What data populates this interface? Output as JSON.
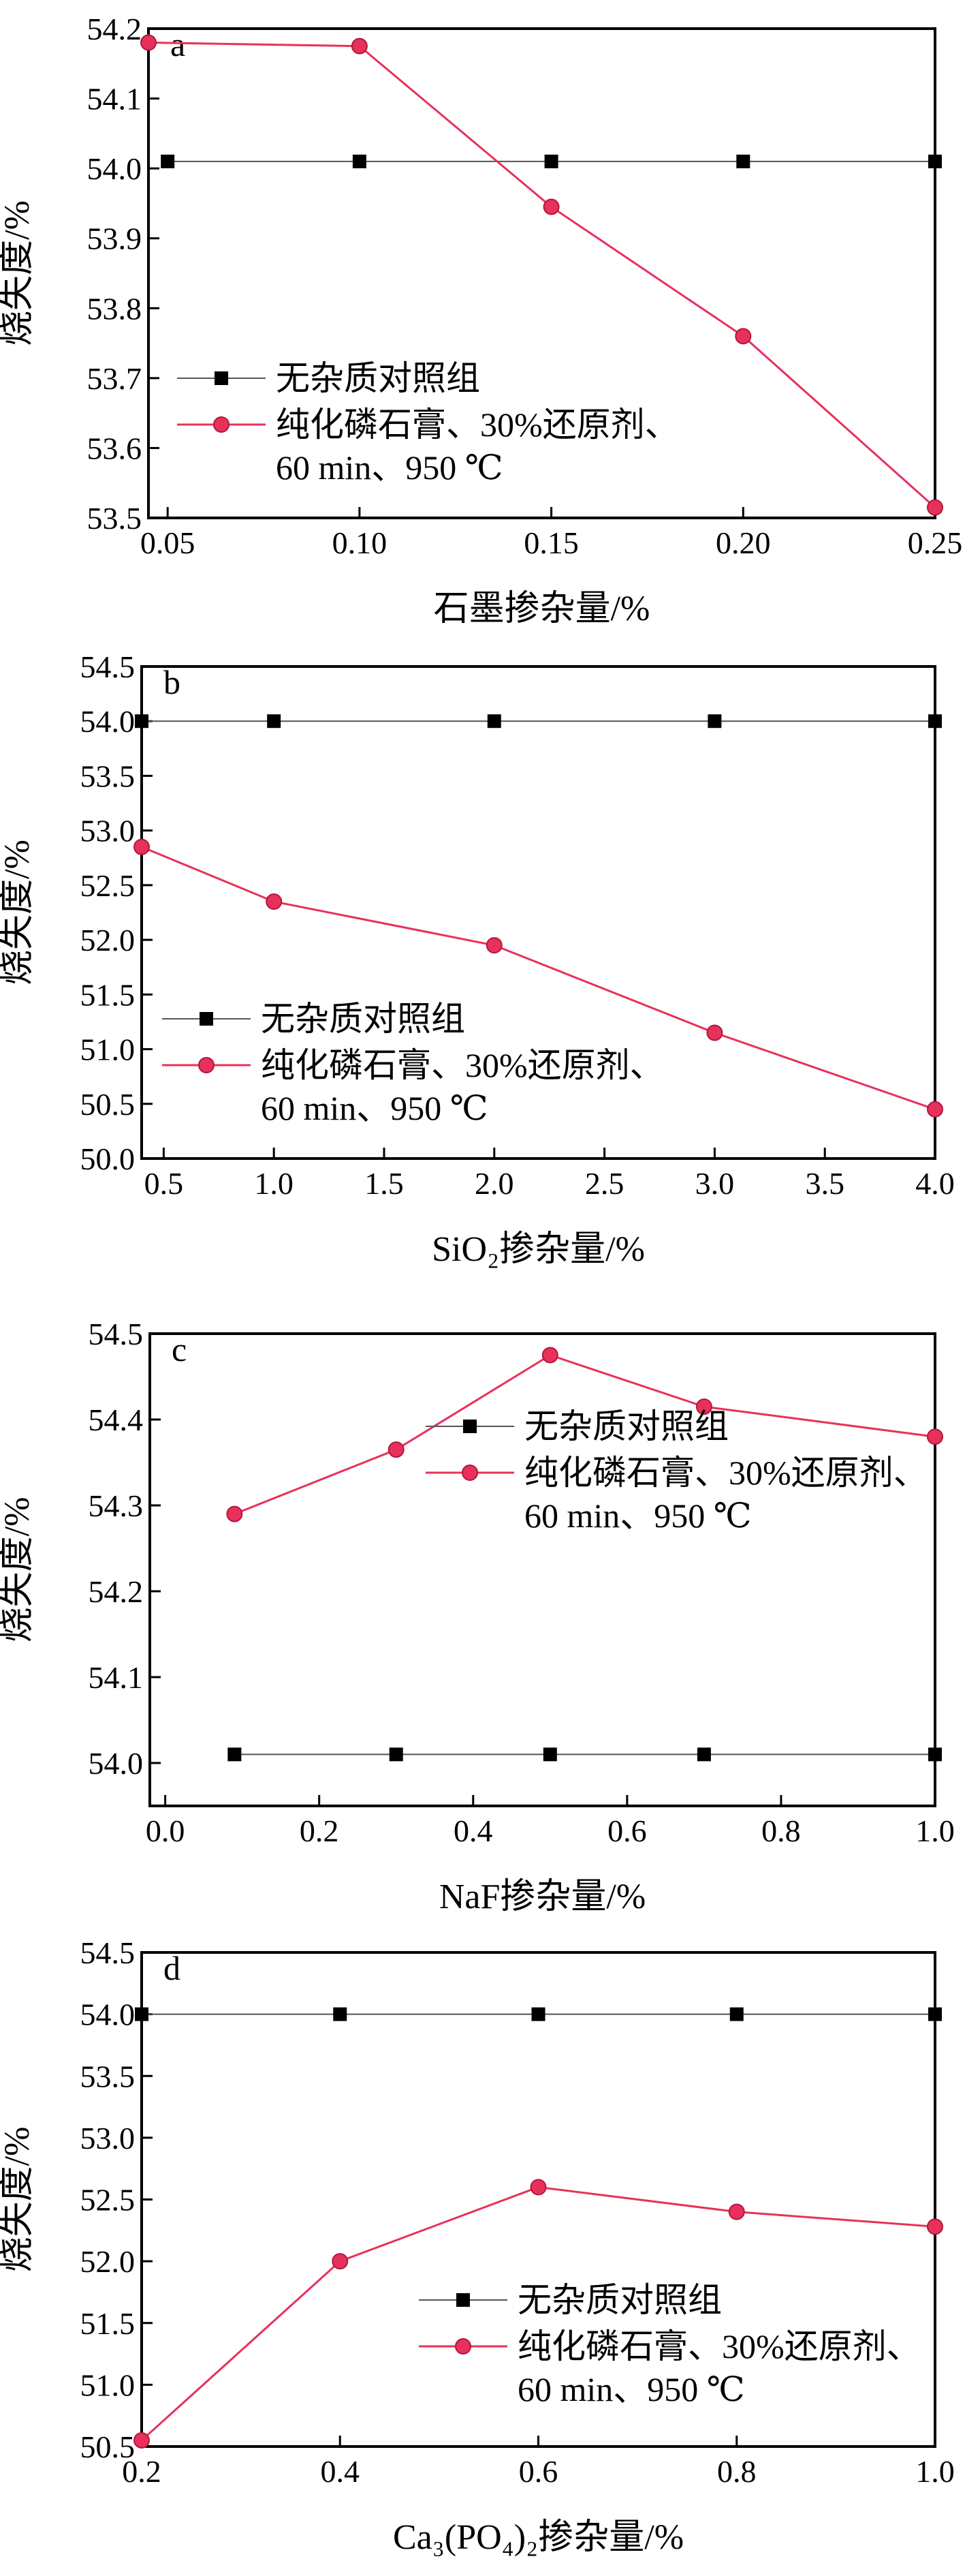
{
  "colors": {
    "control": "#000000",
    "control_line": "#555555",
    "sample": "#e8315a",
    "axis": "#000000"
  },
  "legend": {
    "control": "无杂质对照组",
    "sample_line1": "纯化磷石膏、30%还原剂、",
    "sample_line2": "60 min、950 ℃"
  },
  "chart_data": [
    {
      "id": "a",
      "panel_label": "a",
      "type": "line",
      "xlabel": "石墨掺杂量/%",
      "ylabel": "烧失度/%",
      "xlim": [
        0.045,
        0.25
      ],
      "ylim": [
        53.5,
        54.2
      ],
      "xticks": [
        0.05,
        0.1,
        0.15,
        0.2,
        0.25
      ],
      "xtick_labels": [
        "0.05",
        "0.10",
        "0.15",
        "0.20",
        "0.25"
      ],
      "yticks": [
        53.5,
        53.6,
        53.7,
        53.8,
        53.9,
        54.0,
        54.1,
        54.2
      ],
      "ytick_labels": [
        "53.5",
        "53.6",
        "53.7",
        "53.8",
        "53.9",
        "54.0",
        "54.1",
        "54.2"
      ],
      "grid": false,
      "legend_position": "bottom-left",
      "series": [
        {
          "name": "无杂质对照组",
          "marker": "square",
          "x": [
            0.05,
            0.1,
            0.15,
            0.2,
            0.25
          ],
          "y": [
            54.01,
            54.01,
            54.01,
            54.01,
            54.01
          ]
        },
        {
          "name": "纯化磷石膏、30%还原剂、60 min、950 ℃",
          "marker": "circle",
          "x": [
            0.045,
            0.1,
            0.15,
            0.2,
            0.25
          ],
          "y": [
            54.18,
            54.175,
            53.945,
            53.76,
            53.515
          ]
        }
      ]
    },
    {
      "id": "b",
      "panel_label": "b",
      "type": "line",
      "xlabel": "SiO₂掺杂量/%",
      "ylabel": "烧失度/%",
      "xlim": [
        0.4,
        4.0
      ],
      "ylim": [
        50.0,
        54.5
      ],
      "xticks": [
        0.5,
        1.0,
        1.5,
        2.0,
        2.5,
        3.0,
        3.5,
        4.0
      ],
      "xtick_labels": [
        "0.5",
        "1.0",
        "1.5",
        "2.0",
        "2.5",
        "3.0",
        "3.5",
        "4.0"
      ],
      "yticks": [
        50.0,
        50.5,
        51.0,
        51.5,
        52.0,
        52.5,
        53.0,
        53.5,
        54.0,
        54.5
      ],
      "ytick_labels": [
        "50.0",
        "50.5",
        "51.0",
        "51.5",
        "52.0",
        "52.5",
        "53.0",
        "53.5",
        "54.0",
        "54.5"
      ],
      "grid": false,
      "legend_position": "bottom-left",
      "series": [
        {
          "name": "无杂质对照组",
          "marker": "square",
          "x": [
            0.4,
            1.0,
            2.0,
            3.0,
            4.0
          ],
          "y": [
            54.0,
            54.0,
            54.0,
            54.0,
            54.0
          ]
        },
        {
          "name": "纯化磷石膏、30%还原剂、60 min、950 ℃",
          "marker": "circle",
          "x": [
            0.4,
            1.0,
            2.0,
            3.0,
            4.0
          ],
          "y": [
            52.85,
            52.35,
            51.95,
            51.15,
            50.45
          ]
        }
      ]
    },
    {
      "id": "c",
      "panel_label": "c",
      "type": "line",
      "xlabel": "NaF掺杂量/%",
      "ylabel": "烧失度/%",
      "xlim": [
        -0.02,
        1.0
      ],
      "ylim": [
        53.95,
        54.5
      ],
      "xticks": [
        0.0,
        0.2,
        0.4,
        0.6,
        0.8,
        1.0
      ],
      "xtick_labels": [
        "0.0",
        "0.2",
        "0.4",
        "0.6",
        "0.8",
        "1.0"
      ],
      "yticks": [
        54.0,
        54.1,
        54.2,
        54.3,
        54.4,
        54.5
      ],
      "ytick_labels": [
        "54.0",
        "54.1",
        "54.2",
        "54.3",
        "54.4",
        "54.5"
      ],
      "grid": false,
      "legend_position": "top-right",
      "series": [
        {
          "name": "无杂质对照组",
          "marker": "square",
          "x": [
            0.09,
            0.3,
            0.5,
            0.7,
            1.0
          ],
          "y": [
            54.01,
            54.01,
            54.01,
            54.01,
            54.01
          ]
        },
        {
          "name": "纯化磷石膏、30%还原剂、60 min、950 ℃",
          "marker": "circle",
          "x": [
            0.09,
            0.3,
            0.5,
            0.7,
            1.0
          ],
          "y": [
            54.29,
            54.365,
            54.475,
            54.415,
            54.38
          ]
        }
      ]
    },
    {
      "id": "d",
      "panel_label": "d",
      "type": "line",
      "xlabel": "Ca₃(PO₄)₂掺杂量/%",
      "ylabel": "烧失度/%",
      "xlim": [
        0.2,
        1.0
      ],
      "ylim": [
        50.5,
        54.5
      ],
      "xticks": [
        0.2,
        0.4,
        0.6,
        0.8,
        1.0
      ],
      "xtick_labels": [
        "0.2",
        "0.4",
        "0.6",
        "0.8",
        "1.0"
      ],
      "yticks": [
        50.5,
        51.0,
        51.5,
        52.0,
        52.5,
        53.0,
        53.5,
        54.0,
        54.5
      ],
      "ytick_labels": [
        "50.5",
        "51.0",
        "51.5",
        "52.0",
        "52.5",
        "53.0",
        "53.5",
        "54.0",
        "54.5"
      ],
      "grid": false,
      "legend_position": "bottom-right",
      "series": [
        {
          "name": "无杂质对照组",
          "marker": "square",
          "x": [
            0.2,
            0.4,
            0.6,
            0.8,
            1.0
          ],
          "y": [
            54.0,
            54.0,
            54.0,
            54.0,
            54.0
          ]
        },
        {
          "name": "纯化磷石膏、30%还原剂、60 min、950 ℃",
          "marker": "circle",
          "x": [
            0.2,
            0.4,
            0.6,
            0.8,
            1.0
          ],
          "y": [
            50.55,
            52.0,
            52.6,
            52.4,
            52.28
          ]
        }
      ]
    }
  ]
}
